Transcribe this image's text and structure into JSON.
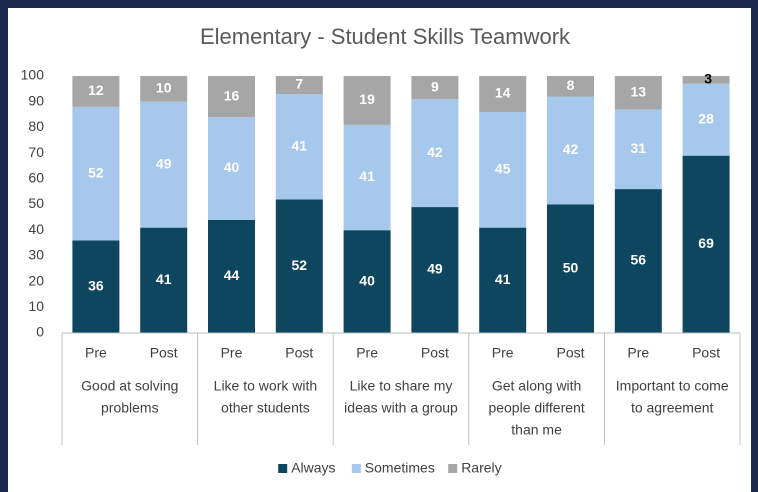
{
  "chart_data": {
    "type": "stacked_bar",
    "title": "Elementary - Student Skills Teamwork",
    "categories": [
      "Pre",
      "Post",
      "Pre",
      "Post",
      "Pre",
      "Post",
      "Pre",
      "Post",
      "Pre",
      "Post"
    ],
    "groups": [
      [
        "Good at solving",
        "problems"
      ],
      [
        "Like to work with",
        "other students"
      ],
      [
        "Like to share my",
        "ideas with a group"
      ],
      [
        "Get along with",
        "people different",
        "than me"
      ],
      [
        "Important to come",
        "to agreement"
      ]
    ],
    "series": [
      {
        "name": "Always",
        "color": "#0e4660",
        "values": [
          36,
          41,
          44,
          52,
          40,
          49,
          41,
          50,
          56,
          69
        ]
      },
      {
        "name": "Sometimes",
        "color": "#a6c8ec",
        "values": [
          52,
          49,
          40,
          41,
          41,
          42,
          45,
          42,
          31,
          28
        ]
      },
      {
        "name": "Rarely",
        "color": "#a6a6a6",
        "values": [
          12,
          10,
          16,
          7,
          19,
          9,
          14,
          8,
          13,
          3
        ]
      }
    ],
    "ylim": [
      0,
      100
    ],
    "yticks": [
      0,
      10,
      20,
      30,
      40,
      50,
      60,
      70,
      80,
      90,
      100
    ],
    "grid": false,
    "legend": "bottom"
  }
}
